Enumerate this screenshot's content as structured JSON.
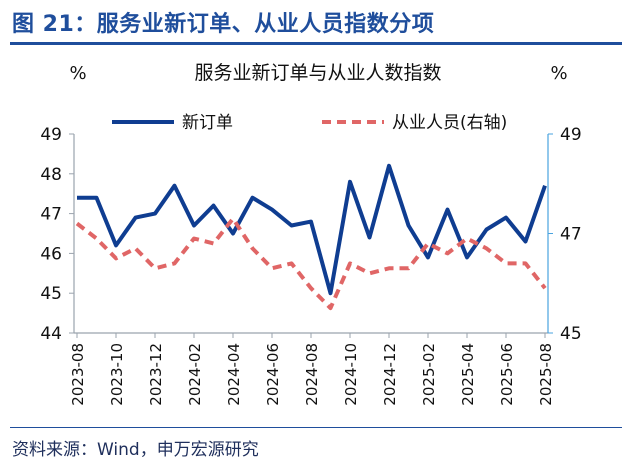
{
  "figure_title": "图 21：服务业新订单、从业人员指数分项",
  "source_note": "资料来源：Wind，申万宏源研究",
  "colors": {
    "brand_blue": "#1f4e9c",
    "series_blue": "#0f3d91",
    "series_red": "#e06666",
    "axis_gray": "#9aa3ad",
    "right_axis": "#4aa3df"
  },
  "chart_data": {
    "type": "line",
    "title": "服务业新订单与从业人数指数",
    "ylabel_left": "%",
    "ylabel_right": "%",
    "ylim_left": [
      44,
      49
    ],
    "yticks_left": [
      "44",
      "45",
      "46",
      "47",
      "48",
      "49"
    ],
    "ylim_right": [
      45,
      49
    ],
    "yticks_right": [
      "45",
      "47",
      "49"
    ],
    "x": [
      "2023-08",
      "2023-09",
      "2023-10",
      "2023-11",
      "2023-12",
      "2024-01",
      "2024-02",
      "2024-03",
      "2024-04",
      "2024-05",
      "2024-06",
      "2024-07",
      "2024-08",
      "2024-09",
      "2024-10",
      "2024-11",
      "2024-12",
      "2025-01",
      "2025-02",
      "2025-03",
      "2025-04",
      "2025-05",
      "2025-06",
      "2025-07",
      "2025-08"
    ],
    "xtick_labels": [
      "2023-08",
      "2023-10",
      "2023-12",
      "2024-02",
      "2024-04",
      "2024-06",
      "2024-08",
      "2024-10",
      "2024-12",
      "2025-02",
      "2025-04",
      "2025-06",
      "2025-08"
    ],
    "legend_position": "top",
    "grid": false,
    "series": [
      {
        "name": "新订单",
        "axis": "left",
        "style": "solid",
        "values": [
          47.4,
          47.4,
          46.2,
          46.9,
          47.0,
          47.7,
          46.7,
          47.2,
          46.5,
          47.4,
          47.1,
          46.7,
          46.8,
          45.0,
          47.8,
          46.4,
          48.2,
          46.7,
          45.9,
          47.1,
          45.9,
          46.6,
          46.9,
          46.3,
          47.7
        ]
      },
      {
        "name": "从业人员(右轴)",
        "axis": "right",
        "style": "dashed",
        "values": [
          47.2,
          46.9,
          46.5,
          46.7,
          46.3,
          46.4,
          46.9,
          46.8,
          47.3,
          46.7,
          46.3,
          46.4,
          45.9,
          45.5,
          46.4,
          46.2,
          46.3,
          46.3,
          46.8,
          46.6,
          46.9,
          46.7,
          46.4,
          46.4,
          45.9
        ]
      }
    ]
  }
}
